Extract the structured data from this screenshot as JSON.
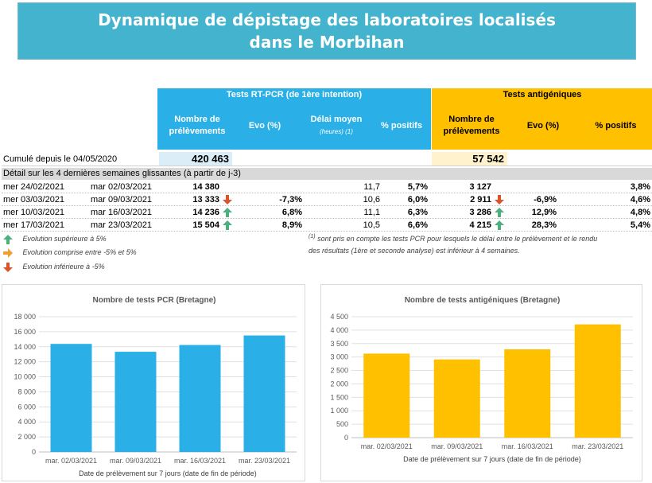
{
  "title": {
    "line1": "Dynamique de dépistage des laboratoires localisés",
    "line2": "dans le Morbihan"
  },
  "table": {
    "pcr_header": "Tests RT-PCR (de 1ère intention)",
    "ag_header": "Tests antigéniques",
    "pcr_cols": {
      "nombre": "Nombre de prélèvements",
      "evo": "Evo (%)",
      "delai": "Délai moyen",
      "delai_sub": "(heures)",
      "delai_sup": "(1)",
      "pos": "% positifs"
    },
    "ag_cols": {
      "nombre": "Nombre de prélèvements",
      "evo": "Evo (%)",
      "pos": "% positifs"
    },
    "cumul": {
      "label": "Cumulé depuis le 04/05/2020",
      "pcr": "420 463",
      "ag": "57 542"
    },
    "detail_label": "Détail sur les 4 dernières semaines glissantes (à partir de j-3)",
    "rows": [
      {
        "start": "mer 24/02/2021",
        "end": "mar 02/03/2021",
        "pcr_n": "14 380",
        "pcr_arrow": "",
        "pcr_evo": "",
        "delai": "11,7",
        "pcr_pos": "5,7%",
        "ag_n": "3 127",
        "ag_arrow": "",
        "ag_evo": "",
        "ag_pos": "3,8%"
      },
      {
        "start": "mer 03/03/2021",
        "end": "mar 09/03/2021",
        "pcr_n": "13 333",
        "pcr_arrow": "down",
        "pcr_evo": "-7,3%",
        "delai": "10,6",
        "pcr_pos": "6,0%",
        "ag_n": "2 911",
        "ag_arrow": "down",
        "ag_evo": "-6,9%",
        "ag_pos": "4,6%"
      },
      {
        "start": "mer 10/03/2021",
        "end": "mar 16/03/2021",
        "pcr_n": "14 236",
        "pcr_arrow": "up",
        "pcr_evo": "6,8%",
        "delai": "11,1",
        "pcr_pos": "6,3%",
        "ag_n": "3 286",
        "ag_arrow": "up",
        "ag_evo": "12,9%",
        "ag_pos": "4,8%"
      },
      {
        "start": "mer 17/03/2021",
        "end": "mar 23/03/2021",
        "pcr_n": "15 504",
        "pcr_arrow": "up",
        "pcr_evo": "8,9%",
        "delai": "10,5",
        "pcr_pos": "6,6%",
        "ag_n": "4 215",
        "ag_arrow": "up",
        "ag_evo": "28,3%",
        "ag_pos": "5,4%"
      }
    ]
  },
  "legend": {
    "up": "Evolution supérieure à 5%",
    "flat": "Evolution comprise entre -5% et 5%",
    "down": "Evolution inférieure à -5%",
    "note_sup": "(1)",
    "note_line1": "sont pris en compte les tests PCR pour lesquels le délai entre le prélèvement et le rendu",
    "note_line2": "des résultats (1ère et seconde analyse) est inférieur à 4 semaines."
  },
  "colors": {
    "pcr": "#2ab0e6",
    "ag": "#ffc000",
    "up": "#4caf7d",
    "flat": "#f0a030",
    "down": "#d9542b",
    "banner": "#44b3ce"
  },
  "chart_data": [
    {
      "type": "bar",
      "title": "Nombre de tests PCR (Bretagne)",
      "xlabel": "Date de prélèvement sur 7 jours (date de fin de période)",
      "categories": [
        "mar. 02/03/2021",
        "mar. 09/03/2021",
        "mar. 16/03/2021",
        "mar. 23/03/2021"
      ],
      "values": [
        14380,
        13333,
        14236,
        15504
      ],
      "ylim": [
        0,
        18000
      ],
      "yticks": [
        0,
        2000,
        4000,
        6000,
        8000,
        10000,
        12000,
        14000,
        16000,
        18000
      ],
      "ytick_labels": [
        "0",
        "2 000",
        "4 000",
        "6 000",
        "8 000",
        "10 000",
        "12 000",
        "14 000",
        "16 000",
        "18 000"
      ],
      "grid": true,
      "color": "#2ab0e6"
    },
    {
      "type": "bar",
      "title": "Nombre de tests antigéniques (Bretagne)",
      "xlabel": "Date de prélèvement sur 7 jours (date de fin de période)",
      "categories": [
        "mar. 02/03/2021",
        "mar. 09/03/2021",
        "mar. 16/03/2021",
        "mar. 23/03/2021"
      ],
      "values": [
        3127,
        2911,
        3286,
        4215
      ],
      "ylim": [
        0,
        4500
      ],
      "yticks": [
        0,
        500,
        1000,
        1500,
        2000,
        2500,
        3000,
        3500,
        4000,
        4500
      ],
      "ytick_labels": [
        "0",
        "500",
        "1 000",
        "1 500",
        "2 000",
        "2 500",
        "3 000",
        "3 500",
        "4 000",
        "4 500"
      ],
      "grid": true,
      "color": "#ffc000"
    }
  ]
}
